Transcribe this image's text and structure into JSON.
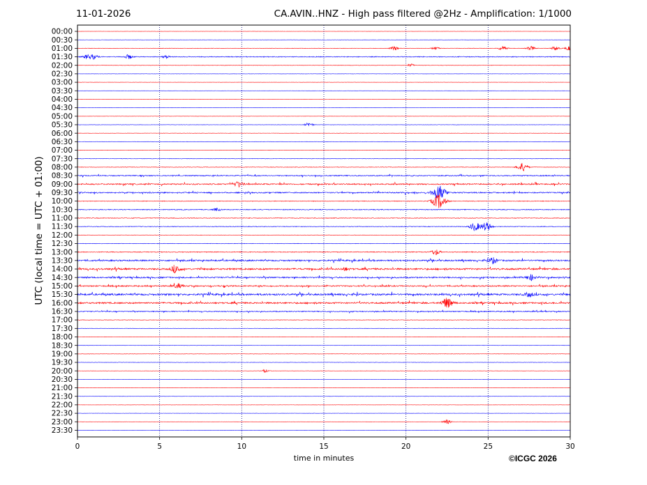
{
  "header": {
    "date": "11-01-2026",
    "title": "CA.AVIN..HNZ - High pass filtered @2Hz - Amplification: 1/1000"
  },
  "footer": {
    "copyright": "©ICGC 2026"
  },
  "colors": {
    "red_trace": "#ff0000",
    "blue_trace": "#0000ff",
    "grid": "#000080"
  },
  "chart_data": {
    "type": "line",
    "subtype": "helicorder",
    "title": "CA.AVIN..HNZ - High pass filtered @2Hz - Amplification: 1/1000",
    "xlabel": "time in minutes",
    "ylabel": "UTC (local time = UTC + 01:00)",
    "xlim": [
      0,
      30
    ],
    "xticks": [
      0,
      5,
      10,
      15,
      20,
      25,
      30
    ],
    "grid_x": [
      5,
      10,
      15,
      20,
      25
    ],
    "trace_colors": [
      "#ff0000",
      "#0000ff"
    ],
    "rows": [
      "00:00",
      "00:30",
      "01:00",
      "01:30",
      "02:00",
      "02:30",
      "03:00",
      "03:30",
      "04:00",
      "04:30",
      "05:00",
      "05:30",
      "06:00",
      "06:30",
      "07:00",
      "07:30",
      "08:00",
      "08:30",
      "09:00",
      "09:30",
      "10:00",
      "10:30",
      "11:00",
      "11:30",
      "12:00",
      "12:30",
      "13:00",
      "13:30",
      "14:00",
      "14:30",
      "15:00",
      "15:30",
      "16:00",
      "16:30",
      "17:00",
      "17:30",
      "18:00",
      "18:30",
      "19:00",
      "19:30",
      "20:00",
      "20:30",
      "21:00",
      "21:30",
      "22:00",
      "22:30",
      "23:00",
      "23:30"
    ],
    "noise_levels": [
      0.3,
      0.3,
      0.6,
      1.2,
      0.5,
      0.3,
      0.3,
      0.3,
      0.3,
      0.3,
      0.3,
      0.4,
      0.4,
      0.4,
      0.5,
      0.6,
      0.7,
      1.5,
      1.8,
      1.7,
      1.0,
      1.2,
      1.0,
      0.9,
      0.5,
      0.7,
      1.2,
      2.2,
      2.4,
      2.0,
      1.9,
      2.6,
      2.3,
      1.4,
      0.7,
      0.5,
      0.5,
      0.4,
      0.5,
      0.5,
      0.4,
      0.3,
      0.3,
      0.3,
      0.3,
      0.3,
      0.3,
      0.3
    ],
    "events": [
      {
        "row": 2,
        "minute": 19.3,
        "amplitude": 3
      },
      {
        "row": 2,
        "minute": 21.8,
        "amplitude": 2
      },
      {
        "row": 2,
        "minute": 25.9,
        "amplitude": 3
      },
      {
        "row": 2,
        "minute": 27.6,
        "amplitude": 3
      },
      {
        "row": 2,
        "minute": 29.1,
        "amplitude": 3
      },
      {
        "row": 2,
        "minute": 30.0,
        "amplitude": 4
      },
      {
        "row": 3,
        "minute": 0.6,
        "amplitude": 3
      },
      {
        "row": 3,
        "minute": 1.0,
        "amplitude": 3
      },
      {
        "row": 3,
        "minute": 3.1,
        "amplitude": 3
      },
      {
        "row": 3,
        "minute": 5.4,
        "amplitude": 2
      },
      {
        "row": 4,
        "minute": 20.3,
        "amplitude": 2
      },
      {
        "row": 11,
        "minute": 14.1,
        "amplitude": 3
      },
      {
        "row": 16,
        "minute": 27.1,
        "amplitude": 6
      },
      {
        "row": 18,
        "minute": 9.8,
        "amplitude": 4
      },
      {
        "row": 19,
        "minute": 22.0,
        "amplitude": 10
      },
      {
        "row": 20,
        "minute": 22.0,
        "amplitude": 10
      },
      {
        "row": 21,
        "minute": 8.5,
        "amplitude": 2
      },
      {
        "row": 23,
        "minute": 24.2,
        "amplitude": 6
      },
      {
        "row": 23,
        "minute": 24.9,
        "amplitude": 6
      },
      {
        "row": 26,
        "minute": 21.8,
        "amplitude": 4
      },
      {
        "row": 27,
        "minute": 25.3,
        "amplitude": 4
      },
      {
        "row": 28,
        "minute": 6.0,
        "amplitude": 5
      },
      {
        "row": 28,
        "minute": 16.3,
        "amplitude": 2
      },
      {
        "row": 29,
        "minute": 27.6,
        "amplitude": 4
      },
      {
        "row": 30,
        "minute": 6.1,
        "amplitude": 3
      },
      {
        "row": 31,
        "minute": 27.5,
        "amplitude": 3
      },
      {
        "row": 32,
        "minute": 22.5,
        "amplitude": 7
      },
      {
        "row": 40,
        "minute": 11.4,
        "amplitude": 2
      },
      {
        "row": 46,
        "minute": 22.5,
        "amplitude": 3
      }
    ]
  }
}
